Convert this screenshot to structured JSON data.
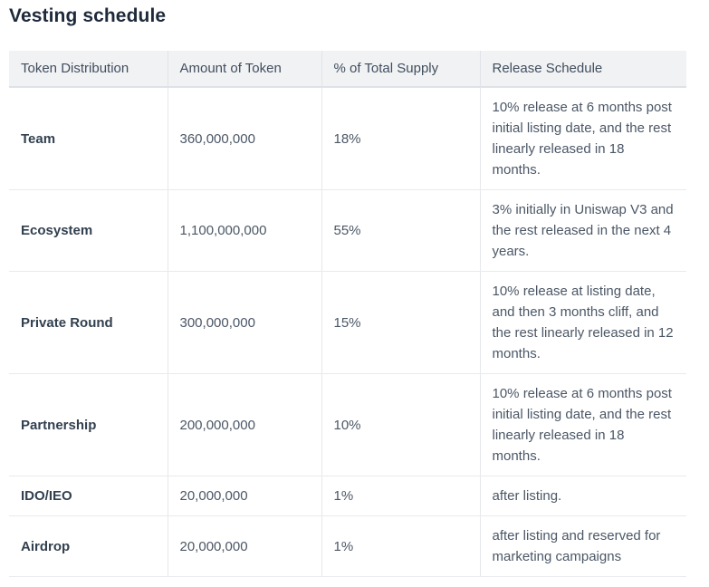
{
  "page": {
    "title": "Vesting schedule"
  },
  "colors": {
    "title_text": "#1e2a3b",
    "header_bg": "#f1f2f4",
    "header_text": "#414e5e",
    "body_text": "#4b5766",
    "row_label_text": "#32404f",
    "row_border": "#e8eaee",
    "column_divider": "#e6e8ec"
  },
  "table": {
    "columns": [
      {
        "label": "Token Distribution"
      },
      {
        "label": "Amount of Token"
      },
      {
        "label": "% of Total Supply"
      },
      {
        "label": "Release Schedule"
      }
    ],
    "rows": [
      {
        "distribution": "Team",
        "amount": "360,000,000",
        "supply": "18%",
        "schedule": "10% release at 6 months post initial listing date, and the rest linearly released in 18 months."
      },
      {
        "distribution": "Ecosystem",
        "amount": "1,100,000,000",
        "supply": "55%",
        "schedule": "3% initially in Uniswap V3 and the rest released in the next 4 years."
      },
      {
        "distribution": "Private Round",
        "amount": "300,000,000",
        "supply": "15%",
        "schedule": "10% release at listing date, and then 3 months cliff, and the rest linearly released in 12 months."
      },
      {
        "distribution": "Partnership",
        "amount": "200,000,000",
        "supply": "10%",
        "schedule": "10% release at 6 months post initial listing date, and the rest linearly released in 18 months."
      },
      {
        "distribution": "IDO/IEO",
        "amount": "20,000,000",
        "supply": "1%",
        "schedule": "after listing."
      },
      {
        "distribution": "Airdrop",
        "amount": "20,000,000",
        "supply": "1%",
        "schedule": "after listing and reserved for marketing campaigns"
      }
    ]
  }
}
